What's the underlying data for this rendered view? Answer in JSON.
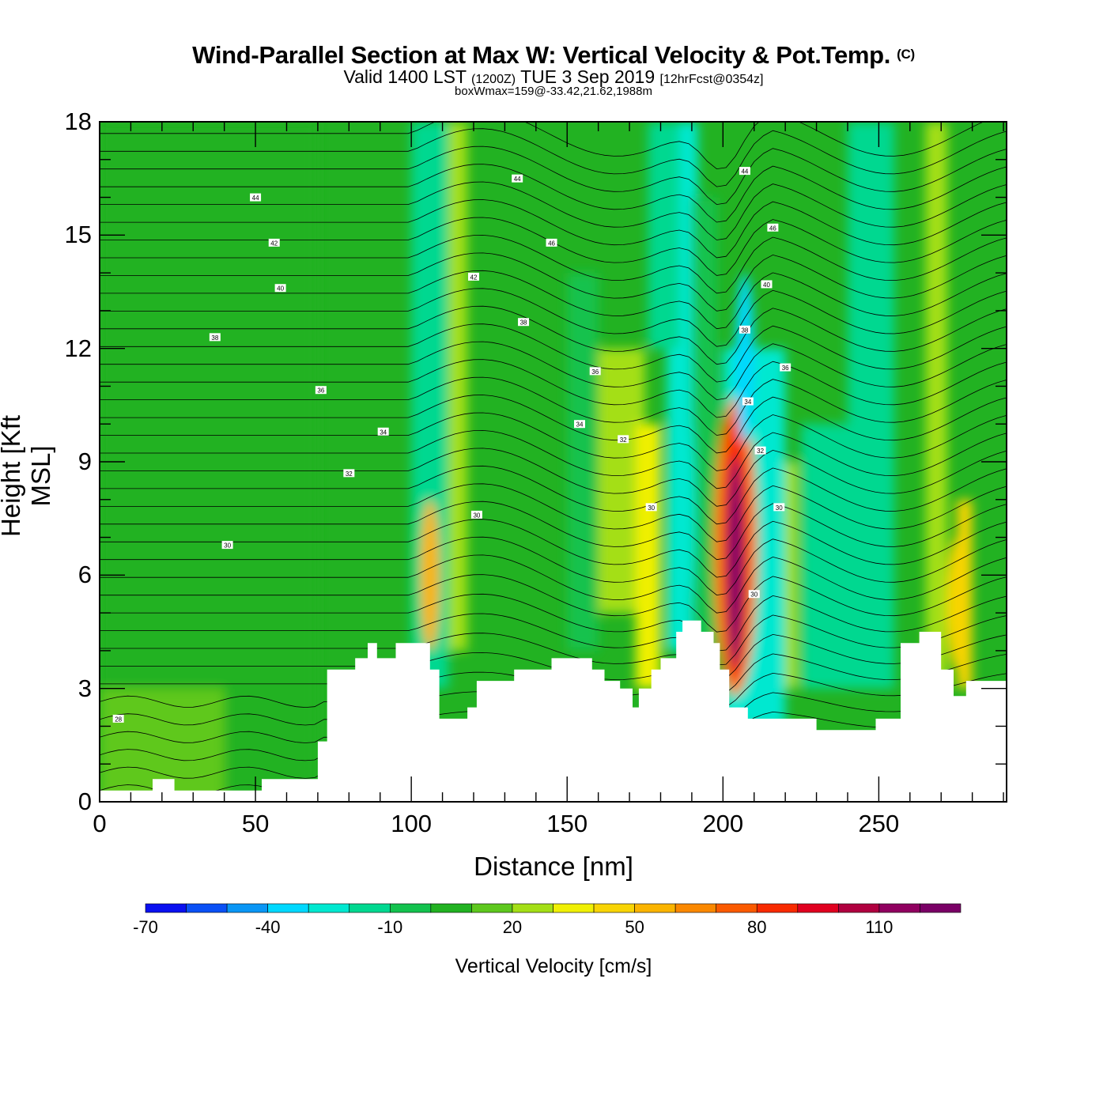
{
  "header": {
    "title": "Wind-Parallel Section at Max W: Vertical Velocity & Pot.Temp.",
    "copyright": "(C)",
    "valid_prefix": "Valid 1400 LST",
    "valid_utc": "(1200Z)",
    "valid_date": "TUE 3 Sep 2019",
    "forecast": "[12hrFcst@0354z]",
    "box_wmax": "boxWmax=159@-33.42,21.62,1988m"
  },
  "chart_data": {
    "type": "heatmap",
    "xlabel": "Distance [nm]",
    "ylabel": "Height [Kft MSL]",
    "xlim": [
      0,
      291
    ],
    "ylim": [
      0,
      18
    ],
    "x_ticks": [
      0,
      50,
      100,
      150,
      200,
      250
    ],
    "y_ticks": [
      0,
      3,
      6,
      9,
      12,
      15,
      18
    ],
    "colorbar": {
      "label": "Vertical Velocity [cm/s]",
      "tick_labels": [
        "-70",
        "-40",
        "-10",
        "20",
        "50",
        "80",
        "110"
      ],
      "ticks": [
        -70,
        -40,
        -10,
        20,
        50,
        80,
        110
      ],
      "levels": [
        -70,
        -60,
        -50,
        -40,
        -30,
        -20,
        -10,
        0,
        10,
        20,
        30,
        40,
        50,
        60,
        70,
        80,
        90,
        100,
        110,
        120,
        130
      ],
      "colors": [
        "#0a10f0",
        "#0a50f5",
        "#0a96f5",
        "#00d8ff",
        "#00e8d0",
        "#00d890",
        "#13c24e",
        "#22b222",
        "#5ec81e",
        "#a4df16",
        "#f0f004",
        "#f8d404",
        "#fab400",
        "#fa8800",
        "#fa5a00",
        "#f82a00",
        "#e00020",
        "#b00040",
        "#900060",
        "#7a0066"
      ]
    },
    "features": [
      {
        "x": 204,
        "ymin": 3,
        "ymax": 10.5,
        "w": 126,
        "note": "updraft maximum"
      },
      {
        "x": 207,
        "ymin": 9.5,
        "ymax": 14,
        "w": -40
      },
      {
        "x": 188,
        "ymin": 4.5,
        "ymax": 11,
        "w": -30
      },
      {
        "x": 106,
        "ymin": 4,
        "ymax": 8,
        "w": 50
      },
      {
        "x": 275,
        "ymin": 3.5,
        "ymax": 7,
        "w": 40
      }
    ],
    "terrain": [
      [
        0,
        0.3
      ],
      [
        17,
        0.3
      ],
      [
        17,
        0.6
      ],
      [
        24,
        0.6
      ],
      [
        24,
        0.3
      ],
      [
        52,
        0.3
      ],
      [
        52,
        0.6
      ],
      [
        70,
        0.6
      ],
      [
        70,
        1.6
      ],
      [
        73,
        1.6
      ],
      [
        73,
        3.5
      ],
      [
        82,
        3.5
      ],
      [
        82,
        3.8
      ],
      [
        86,
        3.8
      ],
      [
        86,
        4.2
      ],
      [
        89,
        4.2
      ],
      [
        89,
        3.8
      ],
      [
        95,
        3.8
      ],
      [
        95,
        4.2
      ],
      [
        106,
        4.2
      ],
      [
        106,
        3.5
      ],
      [
        109,
        3.5
      ],
      [
        109,
        2.2
      ],
      [
        118,
        2.2
      ],
      [
        118,
        2.5
      ],
      [
        121,
        2.5
      ],
      [
        121,
        3.2
      ],
      [
        133,
        3.2
      ],
      [
        133,
        3.5
      ],
      [
        145,
        3.5
      ],
      [
        145,
        3.8
      ],
      [
        158,
        3.8
      ],
      [
        158,
        3.5
      ],
      [
        162,
        3.5
      ],
      [
        162,
        3.2
      ],
      [
        167,
        3.2
      ],
      [
        167,
        3.0
      ],
      [
        171,
        3.0
      ],
      [
        171,
        2.5
      ],
      [
        173,
        2.5
      ],
      [
        173,
        3.0
      ],
      [
        177,
        3.0
      ],
      [
        177,
        3.5
      ],
      [
        180,
        3.5
      ],
      [
        180,
        3.8
      ],
      [
        185,
        3.8
      ],
      [
        185,
        4.5
      ],
      [
        187,
        4.5
      ],
      [
        187,
        4.8
      ],
      [
        193,
        4.8
      ],
      [
        193,
        4.5
      ],
      [
        197,
        4.5
      ],
      [
        197,
        4.2
      ],
      [
        199,
        4.2
      ],
      [
        199,
        3.5
      ],
      [
        202,
        3.5
      ],
      [
        202,
        2.5
      ],
      [
        208,
        2.5
      ],
      [
        208,
        2.2
      ],
      [
        230,
        2.2
      ],
      [
        230,
        1.9
      ],
      [
        249,
        1.9
      ],
      [
        249,
        2.2
      ],
      [
        257,
        2.2
      ],
      [
        257,
        4.2
      ],
      [
        263,
        4.2
      ],
      [
        263,
        4.5
      ],
      [
        270,
        4.5
      ],
      [
        270,
        3.5
      ],
      [
        274,
        3.5
      ],
      [
        274,
        2.8
      ],
      [
        278,
        2.8
      ],
      [
        278,
        3.2
      ],
      [
        291,
        3.2
      ]
    ],
    "contour_labels": [
      {
        "x": 50,
        "y": 16.0,
        "text": "44"
      },
      {
        "x": 56,
        "y": 14.8,
        "text": "42"
      },
      {
        "x": 58,
        "y": 13.6,
        "text": "40"
      },
      {
        "x": 37,
        "y": 12.3,
        "text": "38"
      },
      {
        "x": 71,
        "y": 10.9,
        "text": "36"
      },
      {
        "x": 91,
        "y": 9.8,
        "text": "34"
      },
      {
        "x": 80,
        "y": 8.7,
        "text": "32"
      },
      {
        "x": 41,
        "y": 6.8,
        "text": "30"
      },
      {
        "x": 6,
        "y": 2.2,
        "text": "28"
      },
      {
        "x": 134,
        "y": 16.5,
        "text": "44"
      },
      {
        "x": 145,
        "y": 14.8,
        "text": "46"
      },
      {
        "x": 120,
        "y": 13.9,
        "text": "42"
      },
      {
        "x": 136,
        "y": 12.7,
        "text": "38"
      },
      {
        "x": 159,
        "y": 11.4,
        "text": "36"
      },
      {
        "x": 154,
        "y": 10.0,
        "text": "34"
      },
      {
        "x": 168,
        "y": 9.6,
        "text": "32"
      },
      {
        "x": 121,
        "y": 7.6,
        "text": "30"
      },
      {
        "x": 177,
        "y": 7.8,
        "text": "30"
      },
      {
        "x": 207,
        "y": 16.7,
        "text": "44"
      },
      {
        "x": 216,
        "y": 15.2,
        "text": "46"
      },
      {
        "x": 214,
        "y": 13.7,
        "text": "40"
      },
      {
        "x": 207,
        "y": 12.5,
        "text": "38"
      },
      {
        "x": 220,
        "y": 11.5,
        "text": "36"
      },
      {
        "x": 208,
        "y": 10.6,
        "text": "34"
      },
      {
        "x": 212,
        "y": 9.3,
        "text": "32"
      },
      {
        "x": 218,
        "y": 7.8,
        "text": "30"
      },
      {
        "x": 210,
        "y": 5.5,
        "text": "30"
      }
    ]
  }
}
